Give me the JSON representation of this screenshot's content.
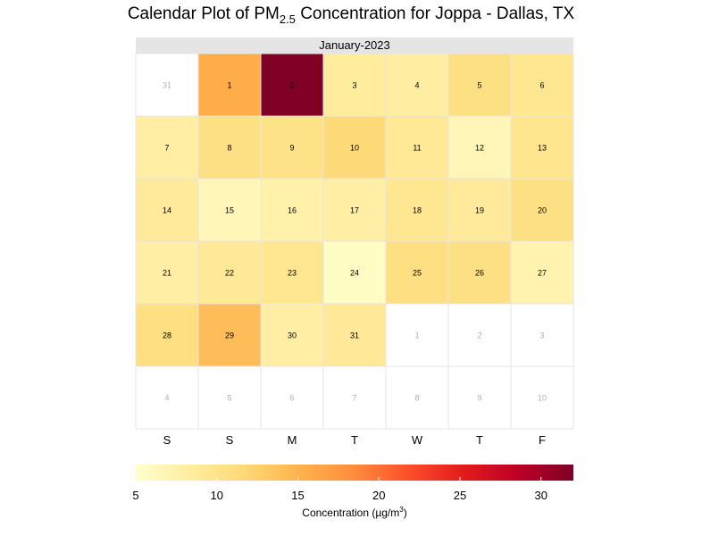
{
  "title": {
    "prefix": "Calendar Plot of PM",
    "subscript": "2.5",
    "suffix": " Concentration for Joppa - Dallas, TX"
  },
  "colors": {
    "scale": [
      "#ffffcc",
      "#ffeda0",
      "#fed976",
      "#feb24c",
      "#fd8d3c",
      "#fc4e2a",
      "#e31a1c",
      "#bd0026",
      "#800026"
    ],
    "strip_bg": "#e5e5e5",
    "cell_border": "#e5e5e5",
    "other_month_text": "#b0b0b0"
  },
  "chart_data": {
    "type": "heatmap",
    "month_label": "January-2023",
    "weekday_labels": [
      "S",
      "S",
      "M",
      "T",
      "W",
      "T",
      "F"
    ],
    "weeks": [
      [
        {
          "day": "31",
          "in_month": false
        },
        {
          "day": "1",
          "in_month": true,
          "value": 15.6
        },
        {
          "day": "2",
          "in_month": true,
          "value": 32.0
        },
        {
          "day": "3",
          "in_month": true,
          "value": 8.6
        },
        {
          "day": "4",
          "in_month": true,
          "value": 8.2
        },
        {
          "day": "5",
          "in_month": true,
          "value": 10.6
        },
        {
          "day": "6",
          "in_month": true,
          "value": 9.6
        }
      ],
      [
        {
          "day": "7",
          "in_month": true,
          "value": 8.1
        },
        {
          "day": "8",
          "in_month": true,
          "value": 10.6
        },
        {
          "day": "9",
          "in_month": true,
          "value": 10.3
        },
        {
          "day": "10",
          "in_month": true,
          "value": 11.6
        },
        {
          "day": "11",
          "in_month": true,
          "value": 9.2
        },
        {
          "day": "12",
          "in_month": true,
          "value": 6.6
        },
        {
          "day": "13",
          "in_month": true,
          "value": 9.8
        }
      ],
      [
        {
          "day": "14",
          "in_month": true,
          "value": 8.8
        },
        {
          "day": "15",
          "in_month": true,
          "value": 6.6
        },
        {
          "day": "16",
          "in_month": true,
          "value": 7.6
        },
        {
          "day": "17",
          "in_month": true,
          "value": 8.1
        },
        {
          "day": "18",
          "in_month": true,
          "value": 9.6
        },
        {
          "day": "19",
          "in_month": true,
          "value": 8.8
        },
        {
          "day": "20",
          "in_month": true,
          "value": 10.6
        }
      ],
      [
        {
          "day": "21",
          "in_month": true,
          "value": 8.1
        },
        {
          "day": "22",
          "in_month": true,
          "value": 9.0
        },
        {
          "day": "23",
          "in_month": true,
          "value": 9.6
        },
        {
          "day": "24",
          "in_month": true,
          "value": 5.6
        },
        {
          "day": "25",
          "in_month": true,
          "value": 10.8
        },
        {
          "day": "26",
          "in_month": true,
          "value": 10.6
        },
        {
          "day": "27",
          "in_month": true,
          "value": 7.2
        }
      ],
      [
        {
          "day": "28",
          "in_month": true,
          "value": 10.8
        },
        {
          "day": "29",
          "in_month": true,
          "value": 14.2
        },
        {
          "day": "30",
          "in_month": true,
          "value": 8.1
        },
        {
          "day": "31",
          "in_month": true,
          "value": 9.0
        },
        {
          "day": "1",
          "in_month": false
        },
        {
          "day": "2",
          "in_month": false
        },
        {
          "day": "3",
          "in_month": false
        }
      ],
      [
        {
          "day": "4",
          "in_month": false
        },
        {
          "day": "5",
          "in_month": false
        },
        {
          "day": "6",
          "in_month": false
        },
        {
          "day": "7",
          "in_month": false
        },
        {
          "day": "8",
          "in_month": false
        },
        {
          "day": "9",
          "in_month": false
        },
        {
          "day": "10",
          "in_month": false
        }
      ]
    ],
    "colorbar": {
      "min": 5,
      "max": 32,
      "ticks": [
        5,
        10,
        15,
        20,
        25,
        30
      ],
      "label": "Concentration (µg/m",
      "label_sup": "3",
      "label_end": ")"
    }
  }
}
